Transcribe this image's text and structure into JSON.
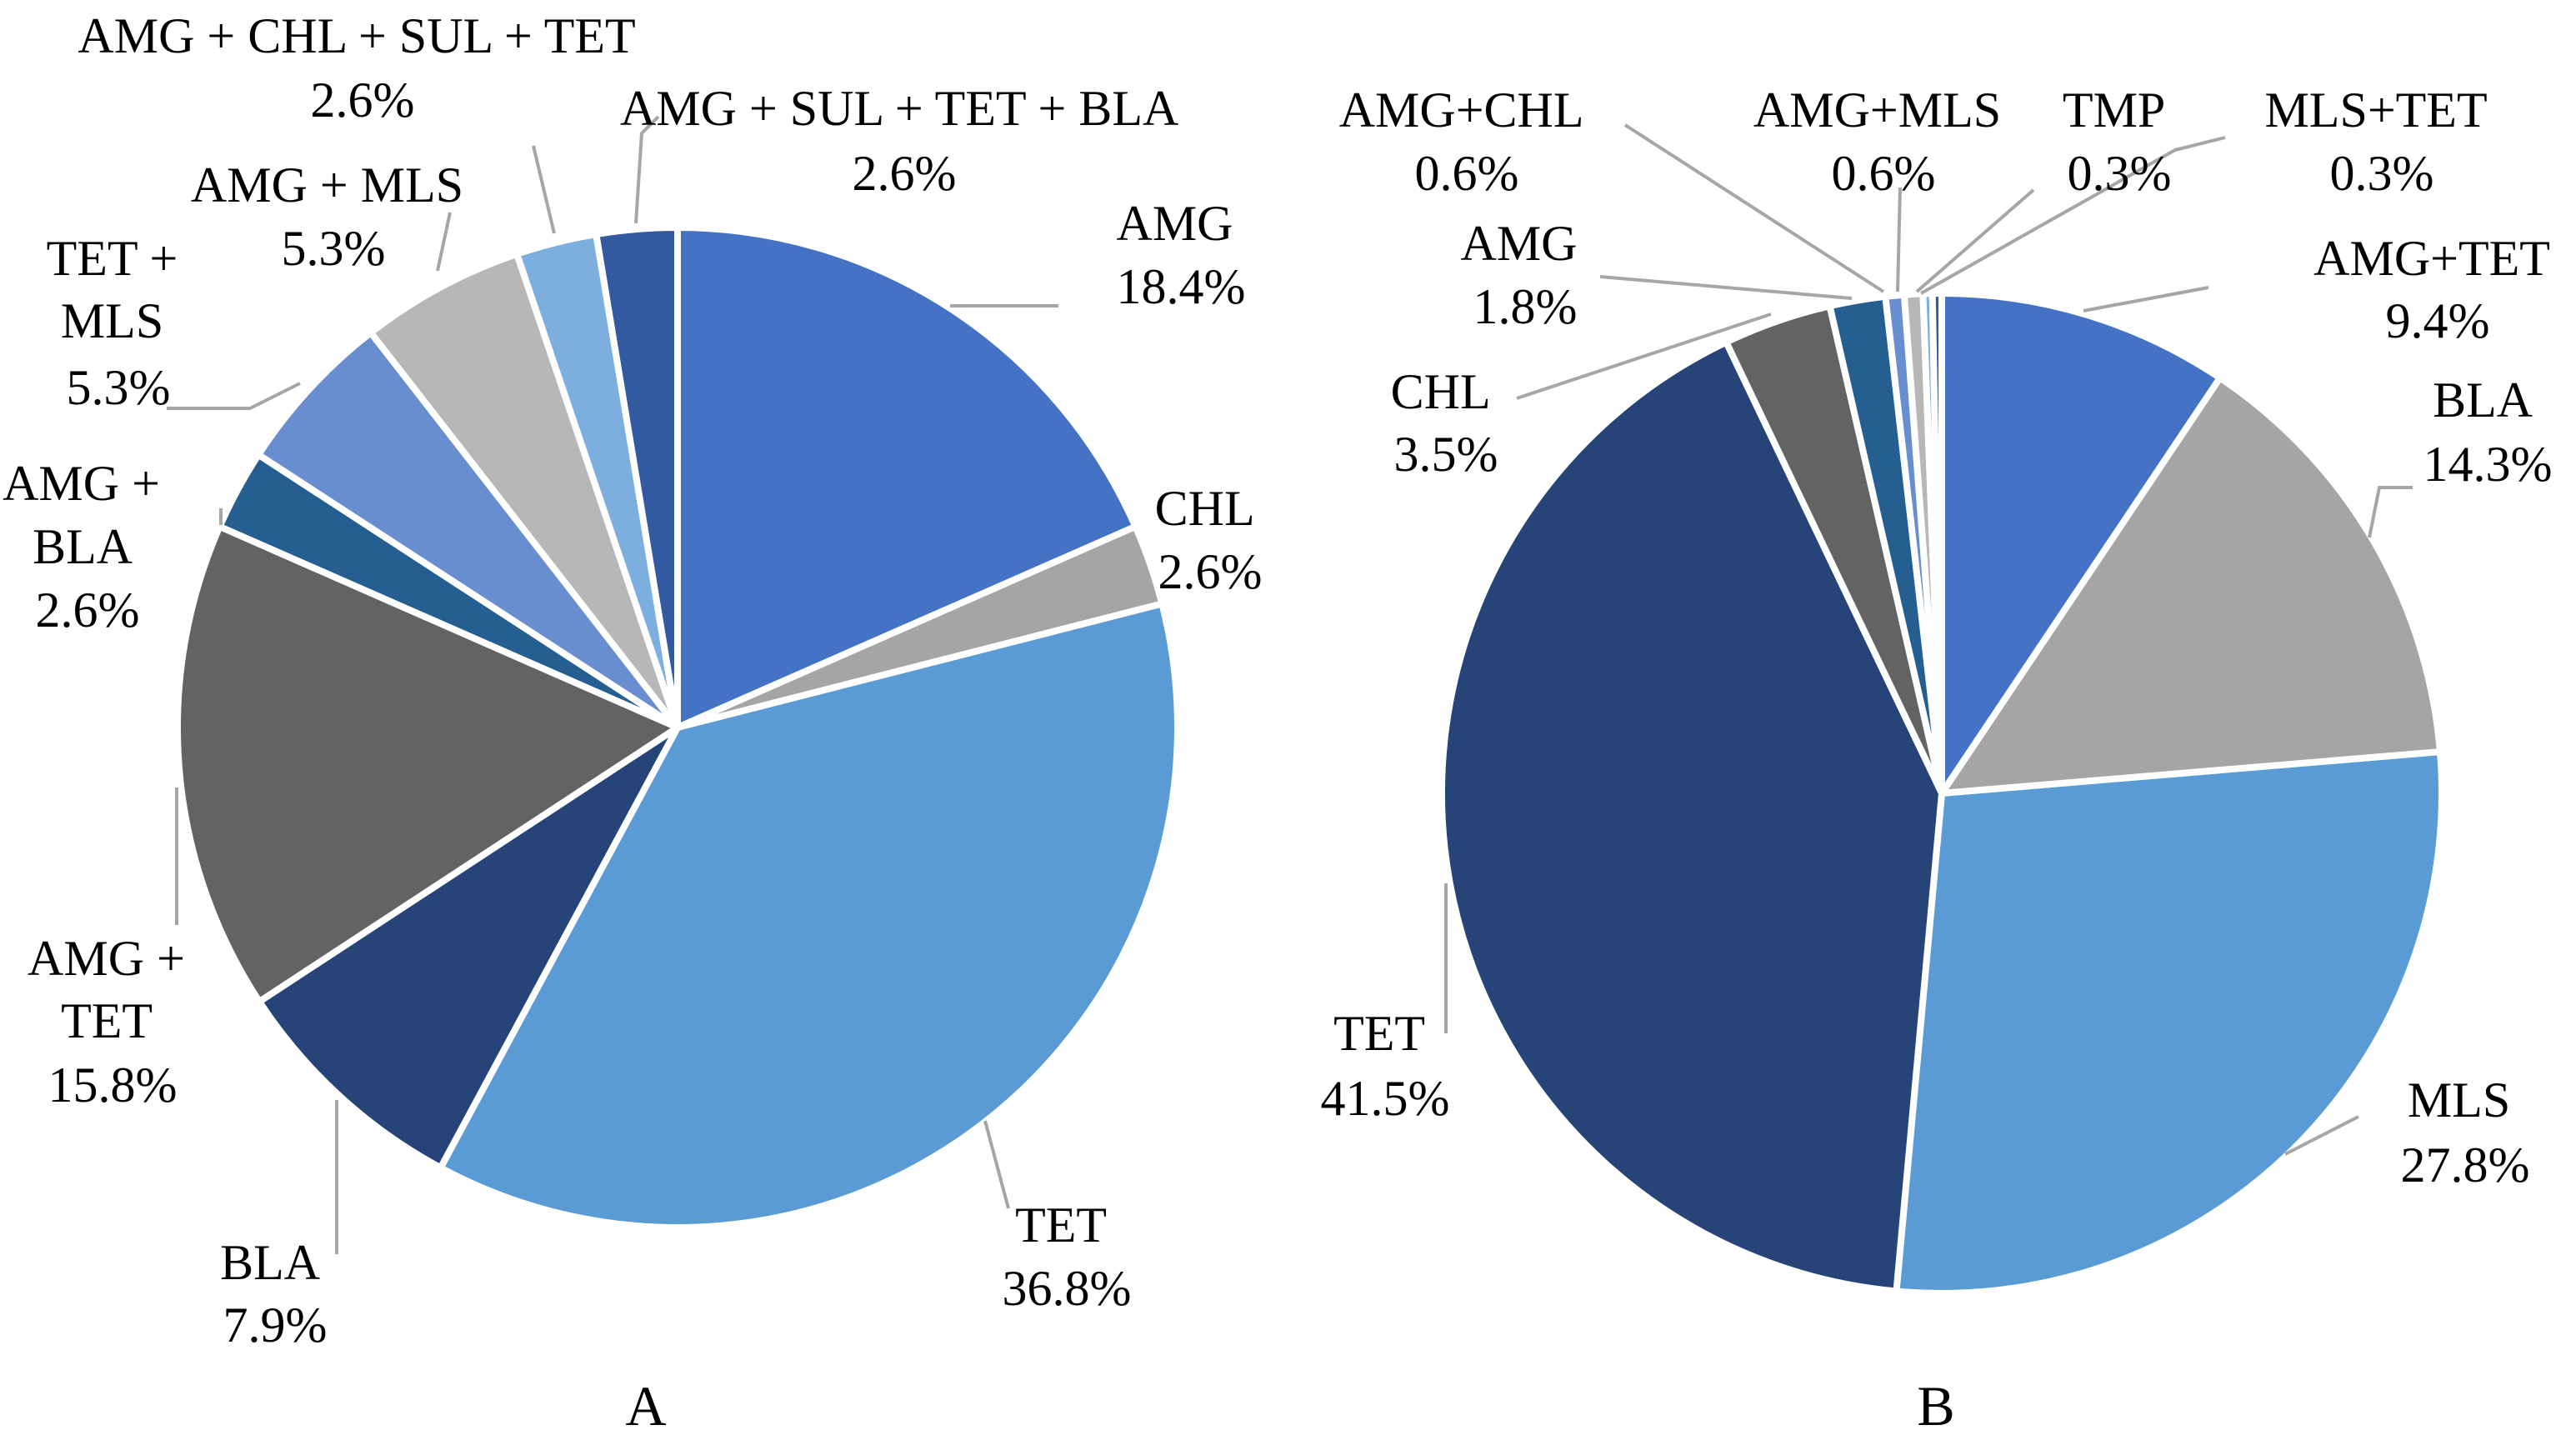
{
  "chart_data": [
    {
      "type": "pie",
      "panel_label": "A",
      "start_angle_deg": 0,
      "direction": "clockwise",
      "slices": [
        {
          "label": "AMG",
          "value": 18.4,
          "value_label": "18.4%",
          "color": "#4472C4"
        },
        {
          "label": "CHL",
          "value": 2.6,
          "value_label": "2.6%",
          "color": "#A5A5A5"
        },
        {
          "label": "TET",
          "value": 36.8,
          "value_label": "36.8%",
          "color": "#5B9BD5"
        },
        {
          "label": "BLA",
          "value": 7.9,
          "value_label": "7.9%",
          "color": "#264478"
        },
        {
          "label": "AMG + TET",
          "value": 15.8,
          "value_label": "15.8%",
          "color": "#636363"
        },
        {
          "label": "AMG + BLA",
          "value": 2.6,
          "value_label": "2.6%",
          "color": "#255E91"
        },
        {
          "label": "TET + MLS",
          "value": 5.3,
          "value_label": "5.3%",
          "color": "#698ED0"
        },
        {
          "label": "AMG + MLS",
          "value": 5.3,
          "value_label": "5.3%",
          "color": "#B7B7B7"
        },
        {
          "label": "AMG + CHL + SUL + TET",
          "value": 2.6,
          "value_label": "2.6%",
          "color": "#7CAFDD"
        },
        {
          "label": "AMG + SUL + TET + BLA",
          "value": 2.6,
          "value_label": "2.6%",
          "color": "#335AA1"
        }
      ]
    },
    {
      "type": "pie",
      "panel_label": "B",
      "start_angle_deg": 0,
      "direction": "clockwise",
      "slices": [
        {
          "label": "AMG+TET",
          "value": 9.4,
          "value_label": "9.4%",
          "color": "#4472C4"
        },
        {
          "label": "BLA",
          "value": 14.3,
          "value_label": "14.3%",
          "color": "#A5A5A5"
        },
        {
          "label": "MLS",
          "value": 27.8,
          "value_label": "27.8%",
          "color": "#5B9BD5"
        },
        {
          "label": "TET",
          "value": 41.5,
          "value_label": "41.5%",
          "color": "#264478"
        },
        {
          "label": "CHL",
          "value": 3.5,
          "value_label": "3.5%",
          "color": "#636363"
        },
        {
          "label": "AMG",
          "value": 1.8,
          "value_label": "1.8%",
          "color": "#255E91"
        },
        {
          "label": "AMG+CHL",
          "value": 0.6,
          "value_label": "0.6%",
          "color": "#698ED0"
        },
        {
          "label": "AMG+MLS",
          "value": 0.6,
          "value_label": "0.6%",
          "color": "#B7B7B7"
        },
        {
          "label": "TMP",
          "value": 0.3,
          "value_label": "0.3%",
          "color": "#7CAFDD"
        },
        {
          "label": "MLS+TET",
          "value": 0.3,
          "value_label": "0.3%",
          "color": "#335AA1"
        }
      ]
    }
  ]
}
